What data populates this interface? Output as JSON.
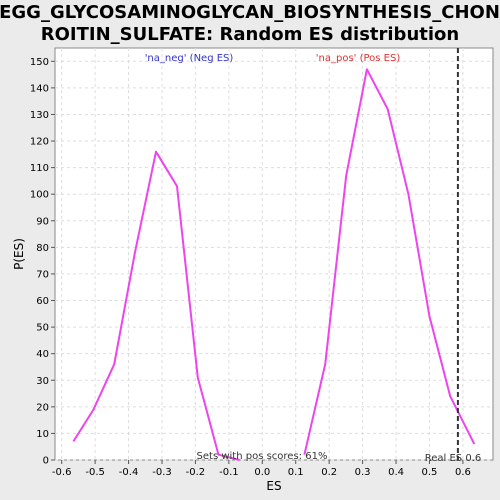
{
  "chart_data": {
    "type": "line",
    "title_lines": [
      "KEGG_GLYCOSAMINOGLYCAN_BIOSYNTHESIS_CHOND",
      "ROITIN_SULFATE: Random ES distribution"
    ],
    "xlabel": "ES",
    "ylabel": "P(ES)",
    "xlim": [
      -0.62,
      0.69
    ],
    "ylim": [
      0,
      155
    ],
    "x_ticks": [
      "-0.6",
      "-0.5",
      "-0.4",
      "-0.3",
      "-0.2",
      "-0.1",
      "0.0",
      "0.1",
      "0.2",
      "0.3",
      "0.4",
      "0.5",
      "0.6"
    ],
    "x_tick_values": [
      -0.6,
      -0.5,
      -0.4,
      -0.3,
      -0.2,
      -0.1,
      0.0,
      0.1,
      0.2,
      0.3,
      0.4,
      0.5,
      0.6
    ],
    "y_ticks": [
      "0",
      "10",
      "20",
      "30",
      "40",
      "50",
      "60",
      "70",
      "80",
      "90",
      "100",
      "110",
      "120",
      "130",
      "140",
      "150"
    ],
    "y_tick_values": [
      0,
      10,
      20,
      30,
      40,
      50,
      60,
      70,
      80,
      90,
      100,
      110,
      120,
      130,
      140,
      150
    ],
    "grid": true,
    "series": [
      {
        "name": "'na_neg' (Neg ES)",
        "color": "#ee44ee",
        "x": [
          -0.565,
          -0.505,
          -0.443,
          -0.381,
          -0.318,
          -0.255,
          -0.193,
          -0.131,
          -0.068
        ],
        "y": [
          7,
          19,
          36,
          78,
          116,
          103,
          31,
          2,
          0
        ]
      },
      {
        "name": "'na_pos' (Pos ES)",
        "color": "#ee44ee",
        "x": [
          0.126,
          0.188,
          0.251,
          0.313,
          0.375,
          0.437,
          0.5,
          0.562,
          0.634
        ],
        "y": [
          2,
          36,
          107,
          147,
          132,
          100,
          54,
          24,
          6
        ]
      }
    ],
    "legend": [
      {
        "label": "'na_neg' (Neg ES)",
        "color": "#3333cc"
      },
      {
        "label": "'na_pos' (Pos ES)",
        "color": "#dd3333"
      }
    ],
    "real_es": {
      "x": 0.585,
      "label": "Real ES 0.6"
    },
    "annotation": "Sets with pos scores: 61%"
  }
}
